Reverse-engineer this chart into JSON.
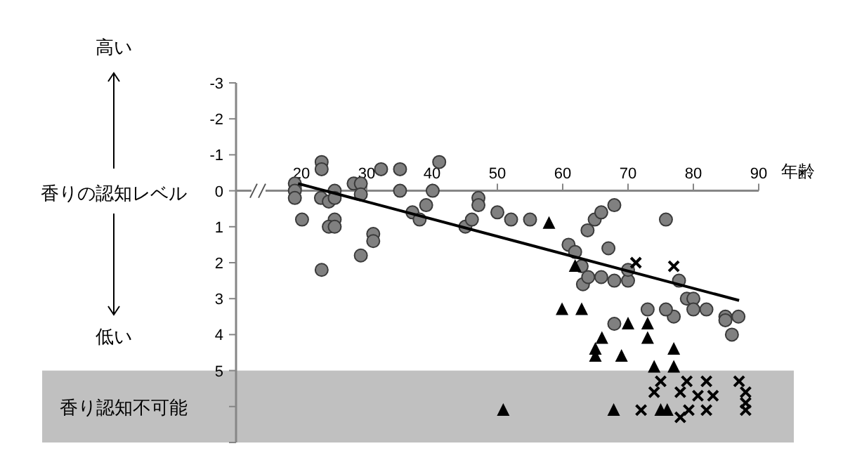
{
  "chart_data": {
    "type": "scatter",
    "xlabel": "年齢",
    "ylabel": "香りの認知レベル",
    "annotations": [
      "高い",
      "低い"
    ],
    "xlim": [
      10,
      90
    ],
    "xticks": [
      20,
      30,
      40,
      50,
      60,
      70,
      80,
      90
    ],
    "ylim": [
      7,
      -3
    ],
    "yticks": [
      -3,
      -2,
      -1,
      0,
      1,
      2,
      3,
      4,
      5,
      {
        "value": 6,
        "label": null
      },
      {
        "value": 7,
        "label": null
      }
    ],
    "grid": false,
    "bands": [
      {
        "axis": "y",
        "from": 5,
        "to": 7,
        "label": "香り認知不可能",
        "color": "#c0c0c0"
      }
    ],
    "series": [
      {
        "type": "scatter",
        "marker": "circle",
        "color": "#808080",
        "x": [
          19,
          19,
          19,
          20.1,
          23.1,
          23.1,
          23,
          24.2,
          25.1,
          25.1,
          25.1,
          24.2,
          25.1,
          23.1,
          28,
          29.1,
          29.1,
          29.1,
          31,
          31,
          32.2,
          35.1,
          35.1,
          37,
          38.1,
          39.1,
          40.1,
          41.1,
          45.1,
          46.1,
          47.1,
          47.1,
          50,
          52.1,
          55,
          63.8,
          64.9,
          65.9,
          67.9,
          75.8,
          60.9,
          61.9,
          67,
          62.9,
          63.1,
          63.9,
          65.9,
          67.9,
          70,
          70,
          77.8,
          79,
          80,
          80,
          82,
          77,
          75.8,
          73,
          84.9,
          84.9,
          86.9,
          85.9,
          67.9
        ],
        "values": [
          -0.2,
          0,
          0.2,
          0.8,
          -0.8,
          -0.6,
          0.2,
          0.3,
          0,
          0.2,
          0.8,
          1,
          1,
          2.2,
          -0.2,
          -0.2,
          0.1,
          1.8,
          1.2,
          1.4,
          -0.6,
          -0.6,
          0,
          0.6,
          0.8,
          0.4,
          0,
          -0.8,
          1,
          0.8,
          0.2,
          0.4,
          0.6,
          0.8,
          0.8,
          1.1,
          0.8,
          0.6,
          0.4,
          0.8,
          1.5,
          1.7,
          1.6,
          2.1,
          2.6,
          2.4,
          2.4,
          2.5,
          2.5,
          2.2,
          2.5,
          3,
          3,
          3.3,
          3.3,
          3.5,
          3.3,
          3.3,
          3.5,
          3.6,
          3.5,
          4,
          3.7
        ]
      },
      {
        "type": "scatter",
        "marker": "triangle",
        "color": "#000000",
        "x": [
          57.9,
          61.9,
          59.9,
          62.9,
          70,
          73,
          66,
          73,
          65,
          65,
          69,
          77,
          74,
          77,
          50.9,
          67.8,
          75,
          76
        ],
        "values": [
          0.9,
          2.1,
          3.3,
          3.3,
          3.7,
          3.7,
          4.1,
          4.1,
          4.4,
          4.6,
          4.6,
          4.4,
          4.9,
          4.9,
          6.1,
          6.1,
          6.1,
          6.1
        ]
      },
      {
        "type": "scatter",
        "marker": "cross",
        "color": "#000000",
        "x": [
          71.2,
          77,
          75,
          74,
          72,
          79,
          82,
          78,
          80.7,
          83,
          82,
          79.3,
          78,
          87,
          88,
          88,
          88
        ],
        "values": [
          2,
          2.1,
          5.3,
          5.6,
          6.1,
          5.3,
          5.3,
          5.6,
          5.7,
          5.7,
          6.1,
          6.1,
          6.3,
          5.3,
          5.6,
          5.9,
          6.1
        ]
      },
      {
        "type": "line",
        "marker": "none",
        "line_style": "solid",
        "color": "#000000",
        "x": [
          19.5,
          87
        ],
        "values": [
          -0.2,
          3.05
        ]
      }
    ]
  }
}
